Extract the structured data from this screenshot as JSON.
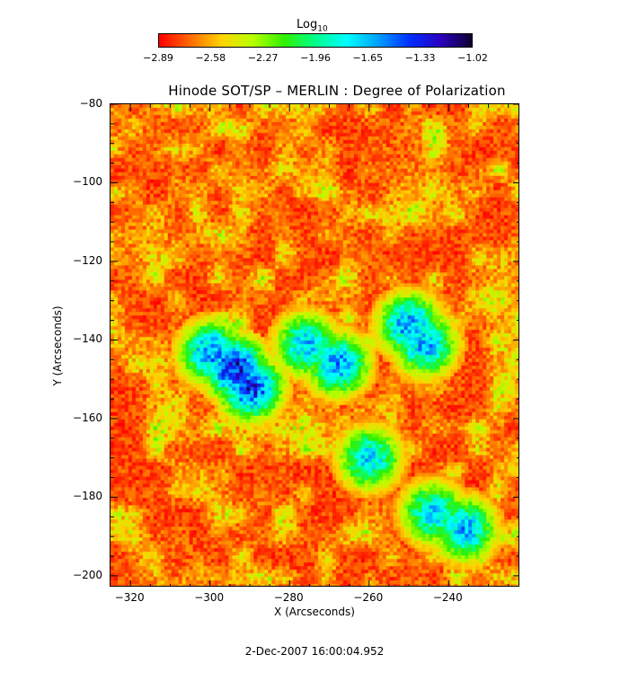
{
  "colorbar": {
    "title_main": "Log",
    "title_sub": "10",
    "ticks": [
      "−2.89",
      "−2.58",
      "−2.27",
      "−1.96",
      "−1.65",
      "−1.33",
      "−1.02"
    ],
    "colors": [
      "#ff0000",
      "#ff6a00",
      "#ffd400",
      "#b8ff00",
      "#30f000",
      "#00ff8c",
      "#00ffff",
      "#00a0ff",
      "#0030ff",
      "#2a00c0",
      "#100030"
    ]
  },
  "chart_data": {
    "type": "heatmap",
    "title": "Hinode SOT/SP – MERLIN : Degree of Polarization",
    "xlabel": "X (Arcseconds)",
    "ylabel": "Y (Arcseconds)",
    "xlim": [
      -325,
      -222
    ],
    "ylim": [
      -203,
      -80
    ],
    "xticks": [
      -320,
      -300,
      -280,
      -260,
      -240
    ],
    "yticks": [
      -80,
      -100,
      -120,
      -140,
      -160,
      -180,
      -200
    ],
    "value_range": [
      -2.89,
      -1.02
    ],
    "colorbar_label": "Log10",
    "notes": "Background dominated by low values (red/orange, ~-2.89 to -2.58); strong polarization (blue/black, ~-1.33 to -1.02) concentrated near X≈-295, Y≈-147 and scattered filaments near X≈-270..-245, Y≈-135..-170",
    "high_regions": [
      {
        "x": -294,
        "y": -147,
        "value": -1.02
      },
      {
        "x": -290,
        "y": -152,
        "value": -1.1
      },
      {
        "x": -300,
        "y": -143,
        "value": -1.3
      },
      {
        "x": -268,
        "y": -146,
        "value": -1.33
      },
      {
        "x": -276,
        "y": -141,
        "value": -1.45
      },
      {
        "x": -250,
        "y": -136,
        "value": -1.33
      },
      {
        "x": -246,
        "y": -141,
        "value": -1.4
      },
      {
        "x": -260,
        "y": -170,
        "value": -1.5
      },
      {
        "x": -236,
        "y": -188,
        "value": -1.4
      },
      {
        "x": -244,
        "y": -184,
        "value": -1.5
      }
    ]
  },
  "footer": {
    "timestamp": "2-Dec-2007 16:00:04.952"
  }
}
